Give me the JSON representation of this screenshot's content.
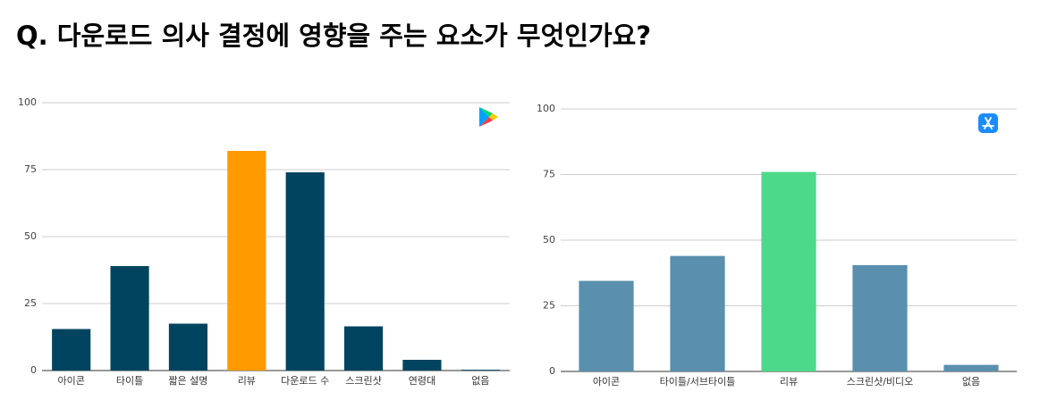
{
  "title": "Q. 다운로드 의사 결정에 영향을 주는 요소가 무엇인가요?",
  "chart_data": [
    {
      "type": "bar",
      "categories": [
        "아이콘",
        "타이틀",
        "짧은 설명",
        "리뷰",
        "다운로드 수",
        "스크린샷",
        "연령대",
        "없음"
      ],
      "values": [
        15.5,
        39,
        17.5,
        82,
        74,
        16.5,
        4,
        0.3
      ],
      "colors": [
        "#00445f",
        "#00445f",
        "#00445f",
        "#ff9a00",
        "#00445f",
        "#00445f",
        "#00445f",
        "#00445f"
      ],
      "ylim": [
        0,
        100
      ],
      "yticks": [
        0,
        25,
        50,
        75,
        100
      ],
      "grid": true
    },
    {
      "type": "bar",
      "categories": [
        "아이콘",
        "타이틀/서브타이틀",
        "리뷰",
        "스크린샷/비디오",
        "없음"
      ],
      "values": [
        34.5,
        44,
        76,
        40.5,
        2.5
      ],
      "colors": [
        "#5a8fad",
        "#5a8fad",
        "#4cd98a",
        "#5a8fad",
        "#5a8fad"
      ],
      "ylim": [
        0,
        100
      ],
      "yticks": [
        0,
        25,
        50,
        75,
        100
      ],
      "grid": true
    }
  ]
}
